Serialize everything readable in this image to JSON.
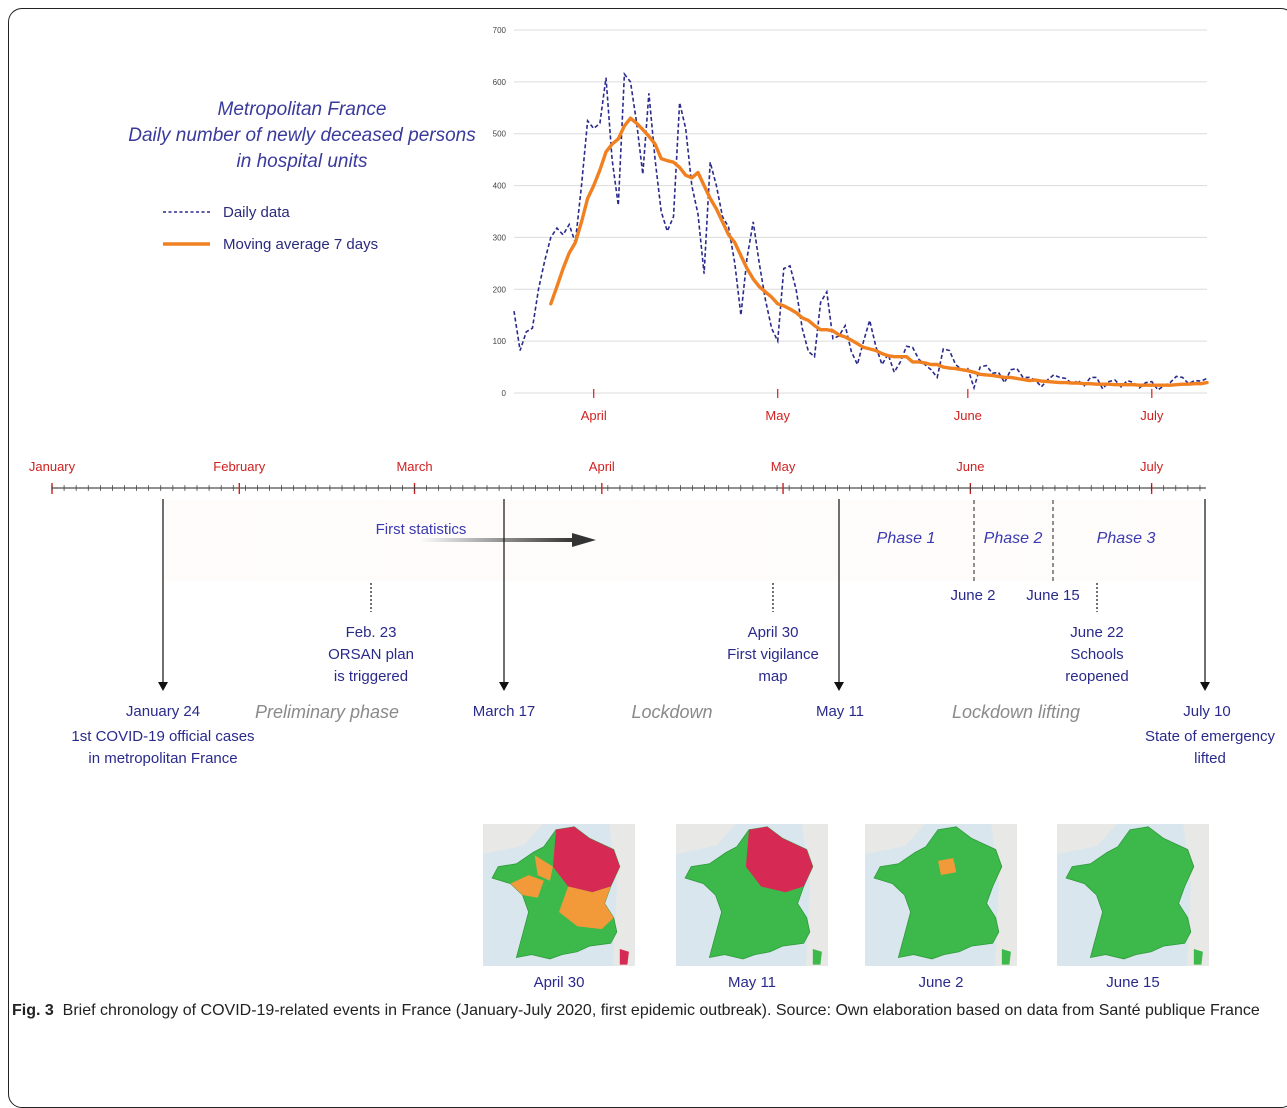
{
  "chart_data": {
    "type": "line",
    "title": [
      "Metropolitan France",
      "Daily number of newly deceased persons",
      "in hospital units"
    ],
    "ylim": [
      0,
      700
    ],
    "y_ticks": [
      "0",
      "100",
      "200",
      "300",
      "400",
      "500",
      "600",
      "700"
    ],
    "x_ticks": [
      "April",
      "May",
      "June",
      "July"
    ],
    "grid": true,
    "legend_placement": "top-left",
    "series": [
      {
        "name": "Daily data",
        "style": "dashed",
        "color": "#2a2a8c",
        "x": [
          "2020-03-19",
          "2020-03-20",
          "2020-03-21",
          "2020-03-22",
          "2020-03-23",
          "2020-03-24",
          "2020-03-25",
          "2020-03-26",
          "2020-03-27",
          "2020-03-28",
          "2020-03-29",
          "2020-03-30",
          "2020-03-31",
          "2020-04-01",
          "2020-04-02",
          "2020-04-03",
          "2020-04-04",
          "2020-04-05",
          "2020-04-06",
          "2020-04-07",
          "2020-04-08",
          "2020-04-09",
          "2020-04-10",
          "2020-04-11",
          "2020-04-12",
          "2020-04-13",
          "2020-04-14",
          "2020-04-15",
          "2020-04-16",
          "2020-04-17",
          "2020-04-18",
          "2020-04-19",
          "2020-04-20",
          "2020-04-21",
          "2020-04-22",
          "2020-04-23",
          "2020-04-24",
          "2020-04-25",
          "2020-04-26",
          "2020-04-27",
          "2020-04-28",
          "2020-04-29",
          "2020-04-30",
          "2020-05-01",
          "2020-05-02",
          "2020-05-03",
          "2020-05-04",
          "2020-05-05",
          "2020-05-06",
          "2020-05-07",
          "2020-05-08",
          "2020-05-09",
          "2020-05-10",
          "2020-05-11",
          "2020-05-12",
          "2020-05-13",
          "2020-05-14",
          "2020-05-15",
          "2020-05-16",
          "2020-05-17",
          "2020-05-18",
          "2020-05-19",
          "2020-05-20",
          "2020-05-21",
          "2020-05-22",
          "2020-05-23",
          "2020-05-24",
          "2020-05-25",
          "2020-05-26",
          "2020-05-27",
          "2020-05-28",
          "2020-05-29",
          "2020-05-30",
          "2020-05-31",
          "2020-06-01",
          "2020-06-02",
          "2020-06-03",
          "2020-06-04",
          "2020-06-05",
          "2020-06-06",
          "2020-06-07",
          "2020-06-08",
          "2020-06-09",
          "2020-06-10",
          "2020-06-11",
          "2020-06-12",
          "2020-06-13",
          "2020-06-14",
          "2020-06-15",
          "2020-06-16",
          "2020-06-17",
          "2020-06-18",
          "2020-06-19",
          "2020-06-20",
          "2020-06-21",
          "2020-06-22",
          "2020-06-23",
          "2020-06-24",
          "2020-06-25",
          "2020-06-26",
          "2020-06-27",
          "2020-06-28",
          "2020-06-29",
          "2020-06-30",
          "2020-07-01",
          "2020-07-02",
          "2020-07-03",
          "2020-07-04",
          "2020-07-05",
          "2020-07-06",
          "2020-07-07",
          "2020-07-08",
          "2020-07-09",
          "2020-07-10"
        ],
        "values": [
          158,
          82,
          118,
          125,
          200,
          255,
          300,
          318,
          305,
          325,
          290,
          400,
          525,
          510,
          520,
          608,
          450,
          362,
          615,
          600,
          520,
          422,
          578,
          450,
          350,
          312,
          340,
          560,
          510,
          400,
          345,
          230,
          445,
          400,
          340,
          320,
          250,
          150,
          260,
          330,
          250,
          180,
          125,
          100,
          240,
          245,
          200,
          125,
          80,
          70,
          175,
          195,
          105,
          110,
          130,
          80,
          55,
          100,
          140,
          90,
          55,
          75,
          40,
          60,
          90,
          88,
          65,
          55,
          45,
          30,
          85,
          82,
          55,
          45,
          47,
          10,
          50,
          53,
          38,
          40,
          20,
          45,
          47,
          30,
          30,
          25,
          12,
          25,
          35,
          30,
          28,
          18,
          24,
          14,
          30,
          30,
          8,
          22,
          25,
          12,
          24,
          20,
          10,
          20,
          22,
          6,
          14,
          20,
          32,
          30,
          18,
          24,
          23,
          28
        ]
      },
      {
        "name": "Moving average 7 days",
        "style": "solid",
        "color": "#f08020",
        "x": [
          "2020-03-25",
          "2020-03-26",
          "2020-03-27",
          "2020-03-28",
          "2020-03-29",
          "2020-03-30",
          "2020-03-31",
          "2020-04-01",
          "2020-04-02",
          "2020-04-03",
          "2020-04-04",
          "2020-04-05",
          "2020-04-06",
          "2020-04-07",
          "2020-04-08",
          "2020-04-09",
          "2020-04-10",
          "2020-04-11",
          "2020-04-12",
          "2020-04-13",
          "2020-04-14",
          "2020-04-15",
          "2020-04-16",
          "2020-04-17",
          "2020-04-18",
          "2020-04-19",
          "2020-04-20",
          "2020-04-21",
          "2020-04-22",
          "2020-04-23",
          "2020-04-24",
          "2020-04-25",
          "2020-04-26",
          "2020-04-27",
          "2020-04-28",
          "2020-04-29",
          "2020-04-30",
          "2020-05-01",
          "2020-05-02",
          "2020-05-03",
          "2020-05-04",
          "2020-05-05",
          "2020-05-06",
          "2020-05-07",
          "2020-05-08",
          "2020-05-09",
          "2020-05-10",
          "2020-05-11",
          "2020-05-12",
          "2020-05-13",
          "2020-05-14",
          "2020-05-15",
          "2020-05-16",
          "2020-05-17",
          "2020-05-18",
          "2020-05-19",
          "2020-05-20",
          "2020-05-21",
          "2020-05-22",
          "2020-05-23",
          "2020-05-24",
          "2020-05-25",
          "2020-05-26",
          "2020-05-27",
          "2020-05-28",
          "2020-05-29",
          "2020-05-30",
          "2020-05-31",
          "2020-06-01",
          "2020-06-02",
          "2020-06-03",
          "2020-06-04",
          "2020-06-05",
          "2020-06-06",
          "2020-06-07",
          "2020-06-08",
          "2020-06-09",
          "2020-06-10",
          "2020-06-11",
          "2020-06-12",
          "2020-06-13",
          "2020-06-14",
          "2020-06-15",
          "2020-06-16",
          "2020-06-17",
          "2020-06-18",
          "2020-06-19",
          "2020-06-20",
          "2020-06-21",
          "2020-06-22",
          "2020-06-23",
          "2020-06-24",
          "2020-06-25",
          "2020-06-26",
          "2020-06-27",
          "2020-06-28",
          "2020-06-29",
          "2020-06-30",
          "2020-07-01",
          "2020-07-02",
          "2020-07-03",
          "2020-07-04",
          "2020-07-05",
          "2020-07-06",
          "2020-07-07",
          "2020-07-08",
          "2020-07-09",
          "2020-07-10"
        ],
        "values": [
          172,
          205,
          240,
          270,
          290,
          330,
          375,
          400,
          430,
          465,
          480,
          490,
          515,
          530,
          520,
          508,
          495,
          480,
          452,
          448,
          445,
          435,
          420,
          415,
          425,
          400,
          375,
          355,
          330,
          305,
          290,
          265,
          240,
          220,
          205,
          195,
          185,
          172,
          168,
          162,
          155,
          145,
          140,
          130,
          122,
          122,
          120,
          112,
          108,
          102,
          95,
          88,
          85,
          82,
          76,
          72,
          70,
          70,
          70,
          60,
          60,
          58,
          55,
          55,
          50,
          48,
          47,
          45,
          43,
          40,
          36,
          35,
          34,
          32,
          30,
          30,
          28,
          26,
          24,
          25,
          23,
          22,
          21,
          20,
          20,
          19,
          19,
          18,
          18,
          17,
          17,
          17,
          16,
          16,
          16,
          16,
          15,
          15,
          15,
          15,
          15,
          15,
          16,
          17,
          17,
          18,
          18,
          20
        ]
      }
    ]
  },
  "timeline": {
    "months": [
      "January",
      "February",
      "March",
      "April",
      "May",
      "June",
      "July"
    ],
    "first_statistics": "First statistics",
    "phases": [
      "Phase 1",
      "Phase 2",
      "Phase 3"
    ],
    "events": {
      "jan24": [
        "January 24",
        "1st COVID-19 official cases",
        "in metropolitan France"
      ],
      "feb23": [
        "Feb. 23",
        "ORSAN plan",
        "is triggered"
      ],
      "mar17": [
        "March 17"
      ],
      "apr30": [
        "April 30",
        "First vigilance",
        "map"
      ],
      "may11": [
        "May 11"
      ],
      "jun2": [
        "June 2"
      ],
      "jun15": [
        "June 15"
      ],
      "jun22": [
        "June 22",
        "Schools",
        "reopened"
      ],
      "jul10": [
        "July 10",
        "State of emergency",
        "lifted"
      ]
    },
    "periods": [
      "Preliminary phase",
      "Lockdown",
      "Lockdown lifting"
    ]
  },
  "maps": {
    "labels": [
      "April 30",
      "May 11",
      "June 2",
      "June 15"
    ],
    "colors": {
      "green": "#3cb94a",
      "orange": "#f29a3a",
      "red": "#d62a55",
      "sea": "#d9e6ee",
      "land": "#e8e8e6"
    }
  },
  "caption": {
    "label": "Fig. 3",
    "text": "Brief chronology of COVID-19-related events in France (January-July 2020, first epidemic outbreak).  Source: Own elaboration based on data from Santé publique France"
  }
}
